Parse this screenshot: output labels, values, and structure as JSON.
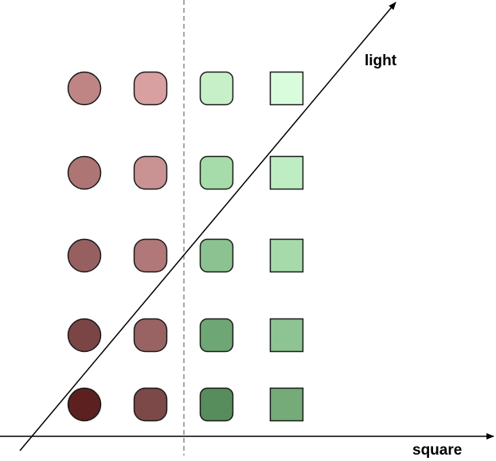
{
  "labels": {
    "x_axis": "square",
    "y_axis": "light"
  },
  "grid": {
    "shapes": [
      "circle",
      "rounded-circle",
      "rounded-square",
      "square"
    ],
    "rows": [
      [
        "#bf8585",
        "#d8a0a0",
        "#c7f0c9",
        "#d9fcdc"
      ],
      [
        "#ae7575",
        "#c99393",
        "#a6dca9",
        "#bfedc3"
      ],
      [
        "#976060",
        "#b07878",
        "#8cc291",
        "#a7daab"
      ],
      [
        "#7c4545",
        "#996363",
        "#6fa675",
        "#8ec394"
      ],
      [
        "#5c2020",
        "#7c4848",
        "#578c5c",
        "#74ab79"
      ]
    ]
  }
}
